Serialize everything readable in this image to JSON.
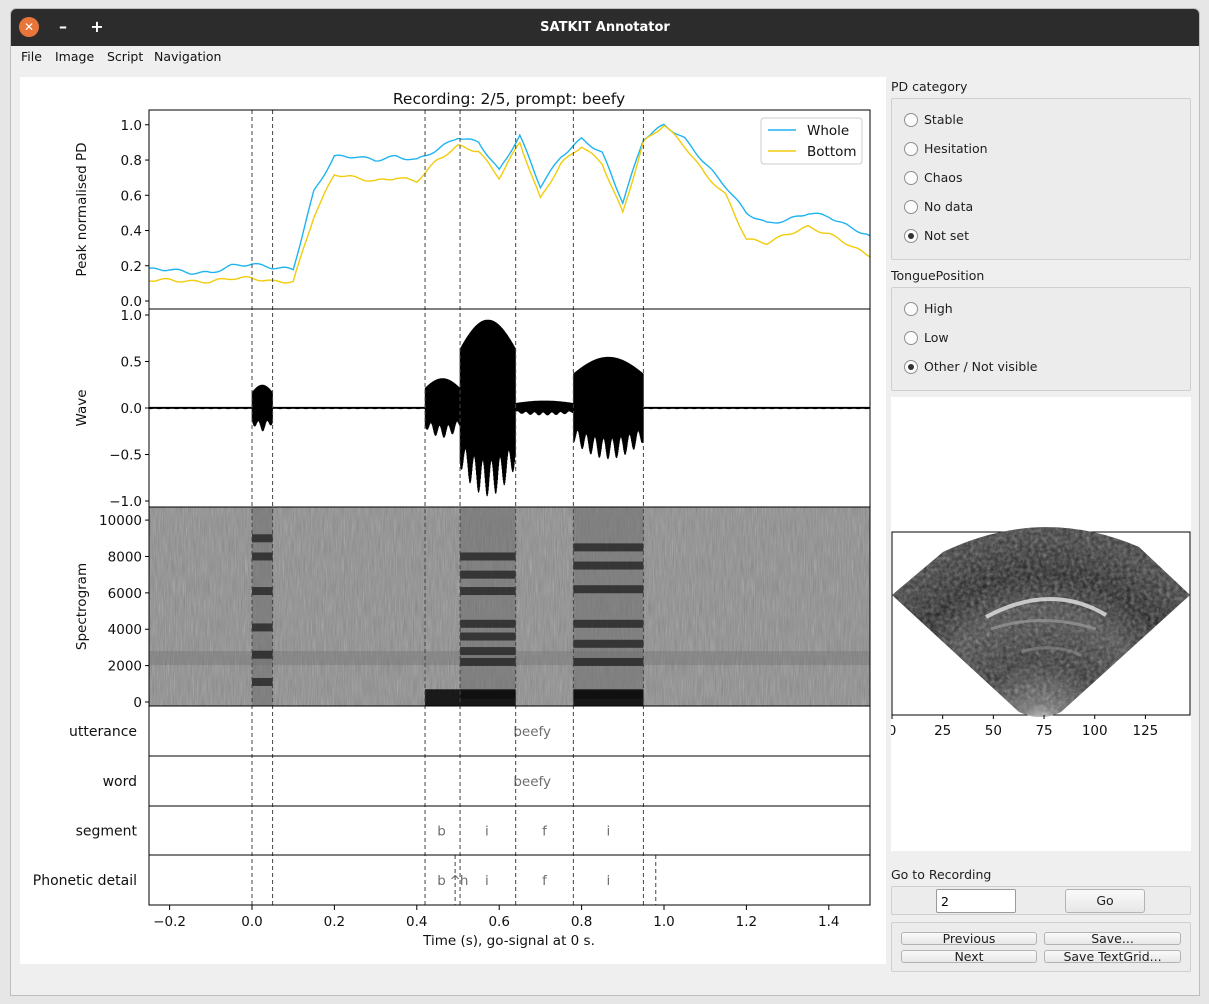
{
  "window": {
    "title": "SATKIT Annotator",
    "close_glyph": "✕",
    "minimize_glyph": "–",
    "maximize_glyph": "+"
  },
  "menu": [
    "File",
    "Image",
    "Script",
    "Navigation"
  ],
  "figure": {
    "title": "Recording: 2/5, prompt: beefy",
    "xlabel": "Time (s), go-signal at 0 s.",
    "x_ticks": [
      "−0.2",
      "0.0",
      "0.2",
      "0.4",
      "0.6",
      "0.8",
      "1.0",
      "1.2",
      "1.4"
    ],
    "boundaries": [
      0.0,
      0.05,
      0.42,
      0.505,
      0.64,
      0.78,
      0.95
    ],
    "pd": {
      "ylabel": "Peak normalised PD",
      "y_ticks": [
        "0.0",
        "0.2",
        "0.4",
        "0.6",
        "0.8",
        "1.0"
      ],
      "legend": [
        "Whole",
        "Bottom"
      ],
      "colors": {
        "whole": "#1fb4f0",
        "bottom": "#f2cc0c"
      }
    },
    "wave": {
      "ylabel": "Wave",
      "y_ticks": [
        "−1.0",
        "−0.5",
        "0.0",
        "0.5",
        "1.0"
      ]
    },
    "spectrogram": {
      "ylabel": "Spectrogram",
      "y_ticks": [
        "0",
        "2000",
        "4000",
        "6000",
        "8000",
        "10000"
      ]
    },
    "tiers": [
      {
        "name": "utterance",
        "labels": [
          {
            "t": 0.68,
            "text": "beefy"
          }
        ]
      },
      {
        "name": "word",
        "labels": [
          {
            "t": 0.68,
            "text": "beefy"
          }
        ]
      },
      {
        "name": "segment",
        "labels": [
          {
            "t": 0.46,
            "text": "b"
          },
          {
            "t": 0.57,
            "text": "i"
          },
          {
            "t": 0.71,
            "text": "f"
          },
          {
            "t": 0.865,
            "text": "i"
          }
        ]
      },
      {
        "name": "Phonetic detail",
        "labels": [
          {
            "t": 0.46,
            "text": "b"
          },
          {
            "t": 0.493,
            "text": "^"
          },
          {
            "t": 0.515,
            "text": "h"
          },
          {
            "t": 0.57,
            "text": "i"
          },
          {
            "t": 0.71,
            "text": "f"
          },
          {
            "t": 0.865,
            "text": "i"
          }
        ]
      }
    ]
  },
  "chart_data": [
    {
      "type": "line",
      "title": "Recording: 2/5, prompt: beefy",
      "xlabel": "Time (s), go-signal at 0 s.",
      "ylabel": "Peak normalised PD",
      "xlim": [
        -0.25,
        1.5
      ],
      "ylim": [
        0,
        1.05
      ],
      "legend": "top-right",
      "x": [
        -0.25,
        -0.2,
        -0.15,
        -0.1,
        -0.05,
        0.0,
        0.05,
        0.1,
        0.15,
        0.2,
        0.25,
        0.3,
        0.35,
        0.4,
        0.45,
        0.5,
        0.55,
        0.6,
        0.65,
        0.7,
        0.75,
        0.8,
        0.85,
        0.9,
        0.95,
        1.0,
        1.05,
        1.1,
        1.15,
        1.2,
        1.25,
        1.3,
        1.35,
        1.4,
        1.45,
        1.5
      ],
      "series": [
        {
          "name": "Whole",
          "values": [
            0.18,
            0.18,
            0.16,
            0.16,
            0.2,
            0.21,
            0.19,
            0.18,
            0.62,
            0.82,
            0.82,
            0.8,
            0.82,
            0.8,
            0.86,
            0.93,
            0.9,
            0.74,
            0.94,
            0.65,
            0.82,
            0.92,
            0.84,
            0.56,
            0.92,
            1.0,
            0.92,
            0.78,
            0.65,
            0.5,
            0.44,
            0.46,
            0.5,
            0.48,
            0.42,
            0.37
          ]
        },
        {
          "name": "Bottom",
          "values": [
            0.12,
            0.12,
            0.11,
            0.11,
            0.13,
            0.13,
            0.11,
            0.11,
            0.48,
            0.72,
            0.7,
            0.68,
            0.7,
            0.68,
            0.8,
            0.88,
            0.85,
            0.7,
            0.9,
            0.58,
            0.78,
            0.88,
            0.78,
            0.5,
            0.9,
            1.0,
            0.88,
            0.72,
            0.6,
            0.35,
            0.33,
            0.38,
            0.42,
            0.38,
            0.32,
            0.25
          ]
        }
      ]
    },
    {
      "type": "line",
      "ylabel": "Wave",
      "xlim": [
        -0.25,
        1.5
      ],
      "ylim": [
        -1.0,
        1.0
      ],
      "segments": [
        {
          "start": 0.0,
          "end": 0.05,
          "amplitude": 0.25
        },
        {
          "start": 0.42,
          "end": 0.505,
          "amplitude": 0.32
        },
        {
          "start": 0.505,
          "end": 0.64,
          "amplitude": 0.95
        },
        {
          "start": 0.64,
          "end": 0.78,
          "amplitude": 0.08
        },
        {
          "start": 0.78,
          "end": 0.95,
          "amplitude": 0.55
        }
      ]
    },
    {
      "type": "heatmap",
      "ylabel": "Spectrogram",
      "xlim": [
        -0.25,
        1.5
      ],
      "ylim": [
        0,
        10500
      ],
      "formant_bands": [
        {
          "start": 0.0,
          "end": 0.05,
          "freqs": [
            1100,
            2600,
            4100,
            6100,
            8000,
            9000
          ]
        },
        {
          "start": 0.505,
          "end": 0.64,
          "freqs": [
            400,
            2200,
            2800,
            3600,
            4300,
            6100,
            7000,
            8000
          ]
        },
        {
          "start": 0.78,
          "end": 0.95,
          "freqs": [
            400,
            2200,
            3200,
            4300,
            6200,
            7500,
            8500
          ]
        }
      ]
    }
  ],
  "pd_category": {
    "title": "PD category",
    "options": [
      "Stable",
      "Hesitation",
      "Chaos",
      "No data",
      "Not set"
    ],
    "selected": "Not set"
  },
  "tongue_position": {
    "title": "TonguePosition",
    "options": [
      "High",
      "Low",
      "Other / Not visible"
    ],
    "selected": "Other / Not visible"
  },
  "ultrasound": {
    "x_ticks": [
      "0",
      "25",
      "50",
      "75",
      "100",
      "125"
    ]
  },
  "goto": {
    "title": "Go to Recording",
    "value": "2",
    "button": "Go"
  },
  "nav": {
    "previous": "Previous",
    "next": "Next",
    "save": "Save...",
    "save_textgrid": "Save TextGrid..."
  }
}
